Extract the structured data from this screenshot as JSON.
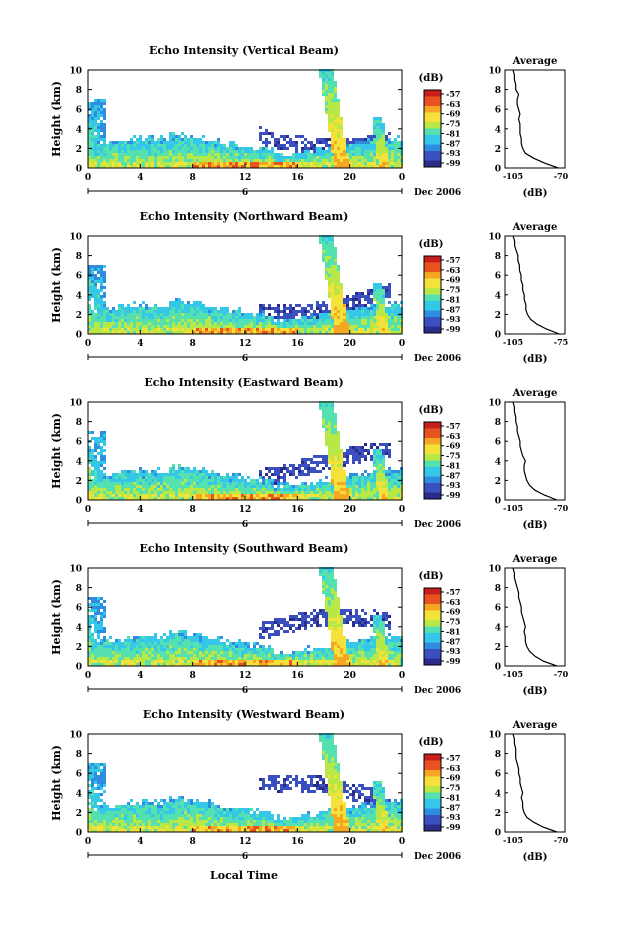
{
  "xlabel_bottom": "Local Time",
  "date_label": "Dec 2006",
  "day_label": "6",
  "colorbar_unit": "(dB)",
  "colorbar_ticks": [
    "-57",
    "-63",
    "-69",
    "-75",
    "-81",
    "-87",
    "-93",
    "-99"
  ],
  "average_title": "Average",
  "colors": {
    "scale": [
      "#2b2b8c",
      "#3a4fc0",
      "#2f8de0",
      "#35c7e8",
      "#55e0b0",
      "#b8e848",
      "#f4e23a",
      "#f5a623",
      "#e8531f",
      "#c81e1e"
    ]
  },
  "chart_data": [
    {
      "type": "heatmap",
      "title": "Echo Intensity (Vertical Beam)",
      "ylabel": "Height (km)",
      "x_ticks": [
        "0",
        "4",
        "8",
        "12",
        "16",
        "20",
        "0"
      ],
      "y_ticks": [
        "0",
        "2",
        "4",
        "6",
        "8",
        "10"
      ],
      "xlim": [
        0,
        24
      ],
      "ylim": [
        0,
        10
      ],
      "avg_xticks": [
        "-105",
        "-70"
      ],
      "avg_xlabel": "(dB)",
      "avg_profile": {
        "height_km": [
          0,
          0.5,
          1,
          1.5,
          2,
          2.5,
          3,
          3.5,
          4,
          4.5,
          5,
          5.5,
          6,
          6.5,
          7,
          7.5,
          8,
          8.5,
          9,
          9.5,
          10
        ],
        "db": [
          -72,
          -82,
          -90,
          -96,
          -98,
          -99,
          -99,
          -100,
          -100,
          -100,
          -101,
          -100,
          -101,
          -102,
          -102,
          -101,
          -103,
          -103,
          -104,
          -104,
          -105
        ]
      }
    },
    {
      "type": "heatmap",
      "title": "Echo Intensity (Northward Beam)",
      "ylabel": "Height (km)",
      "x_ticks": [
        "0",
        "4",
        "8",
        "12",
        "16",
        "20",
        "0"
      ],
      "y_ticks": [
        "0",
        "2",
        "4",
        "6",
        "8",
        "10"
      ],
      "xlim": [
        0,
        24
      ],
      "ylim": [
        0,
        10
      ],
      "avg_xticks": [
        "-105",
        "-75"
      ],
      "avg_xlabel": "(dB)",
      "avg_profile": {
        "height_km": [
          0,
          0.5,
          1,
          1.5,
          2,
          2.5,
          3,
          3.5,
          4,
          4.5,
          5,
          5.5,
          6,
          6.5,
          7,
          7.5,
          8,
          8.5,
          9,
          9.5,
          10
        ],
        "db": [
          -76,
          -84,
          -90,
          -94,
          -96,
          -97,
          -97,
          -98,
          -98,
          -99,
          -99,
          -100,
          -100,
          -101,
          -101,
          -102,
          -102,
          -103,
          -104,
          -104,
          -105
        ]
      }
    },
    {
      "type": "heatmap",
      "title": "Echo Intensity (Eastward Beam)",
      "ylabel": "Height (km)",
      "x_ticks": [
        "0",
        "4",
        "8",
        "12",
        "16",
        "20",
        "0"
      ],
      "y_ticks": [
        "0",
        "2",
        "4",
        "6",
        "8",
        "10"
      ],
      "xlim": [
        0,
        24
      ],
      "ylim": [
        0,
        10
      ],
      "avg_xticks": [
        "-105",
        "-70"
      ],
      "avg_xlabel": "(dB)",
      "avg_profile": {
        "height_km": [
          0,
          0.5,
          1,
          1.5,
          2,
          2.5,
          3,
          3.5,
          4,
          4.5,
          5,
          5.5,
          6,
          6.5,
          7,
          7.5,
          8,
          8.5,
          9,
          9.5,
          10
        ],
        "db": [
          -73,
          -82,
          -89,
          -93,
          -95,
          -96,
          -97,
          -97,
          -96,
          -98,
          -99,
          -100,
          -100,
          -101,
          -102,
          -102,
          -103,
          -103,
          -104,
          -104,
          -105
        ]
      }
    },
    {
      "type": "heatmap",
      "title": "Echo Intensity (Southward Beam)",
      "ylabel": "Height (km)",
      "x_ticks": [
        "0",
        "4",
        "8",
        "12",
        "16",
        "20",
        "0"
      ],
      "y_ticks": [
        "0",
        "2",
        "4",
        "6",
        "8",
        "10"
      ],
      "xlim": [
        0,
        24
      ],
      "ylim": [
        0,
        10
      ],
      "avg_xticks": [
        "-105",
        "-70"
      ],
      "avg_xlabel": "(dB)",
      "avg_profile": {
        "height_km": [
          0,
          0.5,
          1,
          1.5,
          2,
          2.5,
          3,
          3.5,
          4,
          4.5,
          5,
          5.5,
          6,
          6.5,
          7,
          7.5,
          8,
          8.5,
          9,
          9.5,
          10
        ],
        "db": [
          -73,
          -83,
          -89,
          -93,
          -95,
          -96,
          -96,
          -97,
          -96,
          -97,
          -98,
          -99,
          -99,
          -100,
          -101,
          -101,
          -102,
          -103,
          -104,
          -104,
          -105
        ]
      }
    },
    {
      "type": "heatmap",
      "title": "Echo Intensity (Westward Beam)",
      "ylabel": "Height (km)",
      "x_ticks": [
        "0",
        "4",
        "8",
        "12",
        "16",
        "20",
        "0"
      ],
      "y_ticks": [
        "0",
        "2",
        "4",
        "6",
        "8",
        "10"
      ],
      "xlim": [
        0,
        24
      ],
      "ylim": [
        0,
        10
      ],
      "avg_xticks": [
        "-105",
        "-70"
      ],
      "avg_xlabel": "(dB)",
      "avg_profile": {
        "height_km": [
          0,
          0.5,
          1,
          1.5,
          2,
          2.5,
          3,
          3.5,
          4,
          4.5,
          5,
          5.5,
          6,
          6.5,
          7,
          7.5,
          8,
          8.5,
          9,
          9.5,
          10
        ],
        "db": [
          -73,
          -83,
          -90,
          -95,
          -97,
          -98,
          -98,
          -99,
          -98,
          -99,
          -100,
          -100,
          -101,
          -101,
          -102,
          -103,
          -103,
          -103,
          -104,
          -104,
          -105
        ]
      }
    }
  ]
}
